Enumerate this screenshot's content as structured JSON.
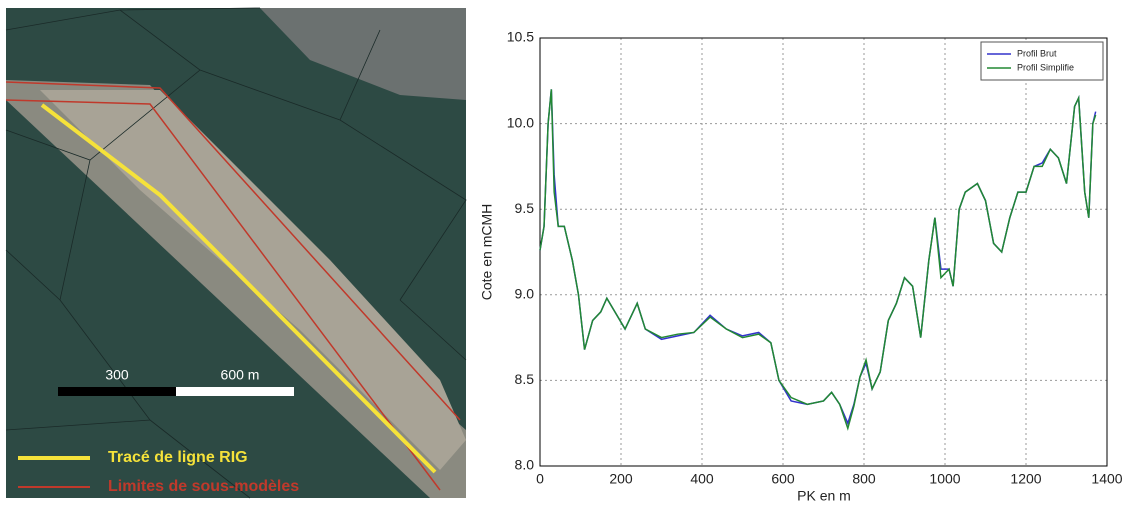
{
  "map": {
    "scale_labels": [
      "300",
      "600 m"
    ],
    "legend": [
      "Tracé de ligne RIG",
      "Limites de sous-modèles"
    ]
  },
  "chart_data": {
    "type": "line",
    "xlabel": "PK en m",
    "ylabel": "Cote en mCMH",
    "x": [
      0,
      10,
      20,
      28,
      35,
      45,
      60,
      80,
      95,
      110,
      130,
      150,
      165,
      185,
      210,
      240,
      260,
      300,
      340,
      380,
      420,
      460,
      500,
      540,
      570,
      590,
      620,
      660,
      700,
      720,
      740,
      760,
      775,
      790,
      805,
      820,
      840,
      860,
      880,
      900,
      920,
      940,
      960,
      975,
      990,
      1010,
      1020,
      1035,
      1050,
      1080,
      1100,
      1120,
      1140,
      1160,
      1180,
      1200,
      1220,
      1240,
      1260,
      1280,
      1300,
      1320,
      1330,
      1345,
      1355,
      1365,
      1372
    ],
    "series": [
      {
        "name": "Profil Brut",
        "color": "#3333cc",
        "values": [
          9.26,
          9.4,
          10.0,
          10.2,
          9.7,
          9.4,
          9.4,
          9.2,
          9.0,
          8.68,
          8.85,
          8.9,
          8.98,
          8.9,
          8.8,
          8.95,
          8.8,
          8.74,
          8.76,
          8.78,
          8.88,
          8.8,
          8.76,
          8.78,
          8.72,
          8.5,
          8.38,
          8.36,
          8.38,
          8.43,
          8.36,
          8.25,
          8.36,
          8.52,
          8.6,
          8.45,
          8.55,
          8.85,
          8.95,
          9.1,
          9.05,
          8.75,
          9.2,
          9.45,
          9.15,
          9.15,
          9.05,
          9.5,
          9.6,
          9.65,
          9.55,
          9.3,
          9.25,
          9.45,
          9.6,
          9.6,
          9.75,
          9.77,
          9.85,
          9.8,
          9.65,
          10.1,
          10.15,
          9.6,
          9.45,
          10.0,
          10.07
        ]
      },
      {
        "name": "Profil Simplifie",
        "color": "#228833",
        "values": [
          9.26,
          9.4,
          10.0,
          10.2,
          9.6,
          9.4,
          9.4,
          9.2,
          9.0,
          8.68,
          8.85,
          8.9,
          8.98,
          8.9,
          8.8,
          8.95,
          8.8,
          8.75,
          8.77,
          8.78,
          8.87,
          8.8,
          8.75,
          8.77,
          8.72,
          8.5,
          8.4,
          8.36,
          8.38,
          8.43,
          8.36,
          8.22,
          8.35,
          8.52,
          8.62,
          8.45,
          8.55,
          8.85,
          8.95,
          9.1,
          9.05,
          8.75,
          9.2,
          9.45,
          9.1,
          9.15,
          9.05,
          9.5,
          9.6,
          9.65,
          9.55,
          9.3,
          9.25,
          9.45,
          9.6,
          9.6,
          9.75,
          9.75,
          9.85,
          9.8,
          9.65,
          10.1,
          10.15,
          9.6,
          9.45,
          10.0,
          10.05
        ]
      }
    ],
    "xlim": [
      0,
      1400
    ],
    "xticks": [
      0,
      200,
      400,
      600,
      800,
      1000,
      1200,
      1400
    ],
    "ylim": [
      8,
      10.5
    ],
    "yticks": [
      {
        "value": 8,
        "label": "8.0"
      },
      8.5,
      {
        "value": 9,
        "label": "9.0"
      },
      9.5,
      {
        "value": 10,
        "label": "10.0"
      },
      10.5
    ],
    "grid": true,
    "legend": "upper right"
  }
}
